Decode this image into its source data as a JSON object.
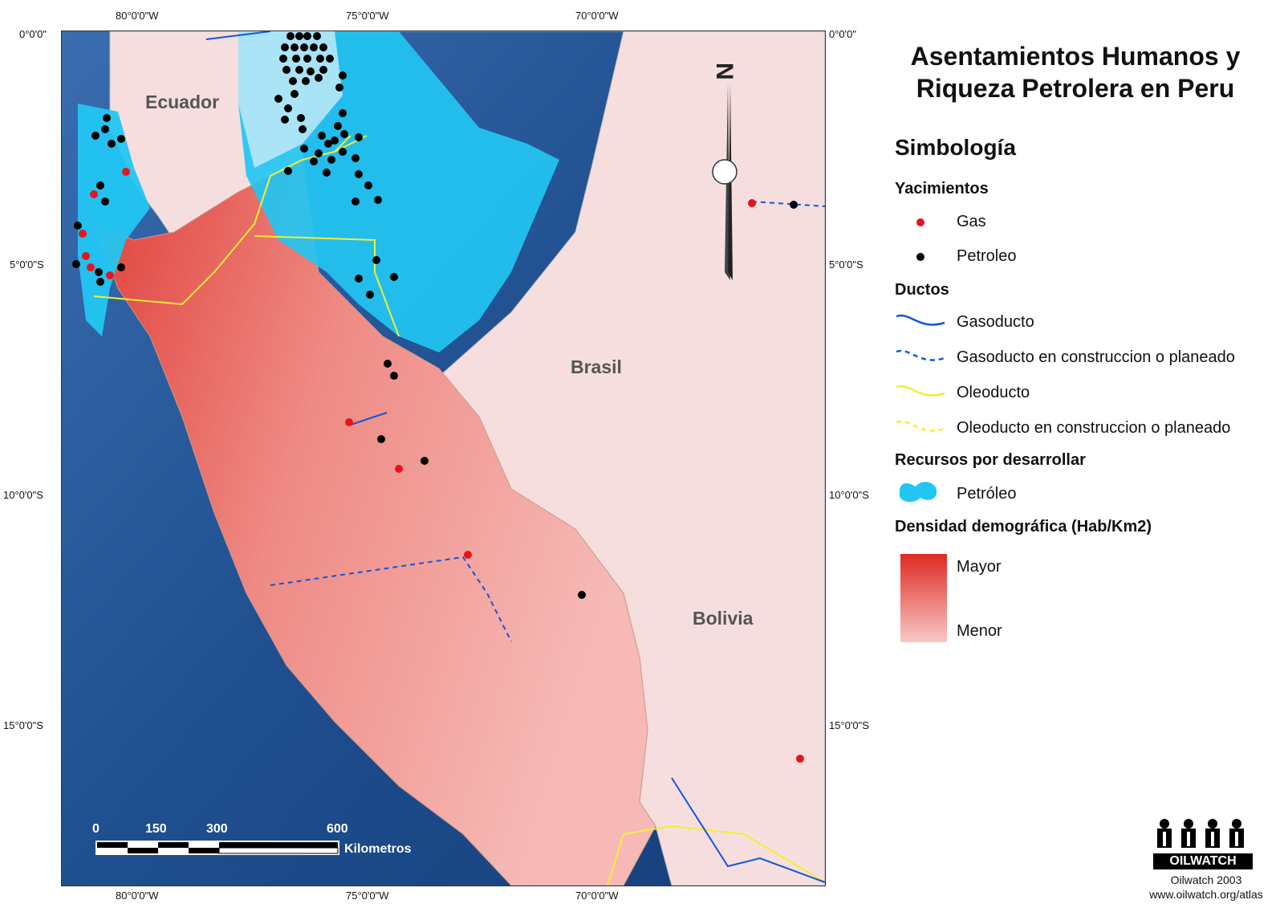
{
  "title": "Asentamientos Humanos y Riqueza Petrolera en Peru",
  "title_lines": [
    "Asentamientos Humanos y",
    "Riqueza Petrolera en Peru"
  ],
  "graticule": {
    "top": [
      "80°0'0\"W",
      "75°0'0\"W",
      "70°0'0\"W"
    ],
    "bottom": [
      "80°0'0\"W",
      "75°0'0\"W",
      "70°0'0\"W"
    ],
    "left": [
      "0°0'0\"",
      "5°0'0\"S",
      "10°0'0\"S",
      "15°0'0\"S"
    ],
    "right": [
      "0°0'0\"",
      "5°0'0\"S",
      "10°0'0\"S",
      "15°0'0\"S"
    ]
  },
  "countries": {
    "ecuador": "Ecuador",
    "brasil": "Brasil",
    "bolivia": "Bolivia"
  },
  "north_arrow_letter": "N",
  "scale_bar": {
    "ticks": [
      "0",
      "150",
      "300",
      "600"
    ],
    "unit": "Kilometros"
  },
  "legend": {
    "heading": "Simbología",
    "yacimientos": {
      "heading": "Yacimientos",
      "gas": "Gas",
      "petroleo": "Petroleo"
    },
    "ductos": {
      "heading": "Ductos",
      "gasoducto": "Gasoducto",
      "gasoducto_planned": "Gasoducto en construccion o planeado",
      "oleoducto": "Oleoducto",
      "oleoducto_planned": "Oleoducto en construccion o planeado"
    },
    "recursos": {
      "heading": "Recursos por desarrollar",
      "petroleo": "Petróleo"
    },
    "densidad": {
      "heading": "Densidad demográfica (Hab/Km2)",
      "mayor": "Mayor",
      "menor": "Menor"
    }
  },
  "credit": {
    "logo_text": "OILWATCH",
    "line1": "Oilwatch 2003",
    "line2": "www.oilwatch.org/atlas"
  },
  "colors": {
    "ocean": "#1f4f8f",
    "peru_high": "#e0302a",
    "peru_low": "#f8c8c6",
    "neighbor": "#f7dede",
    "oil_resource": "#22c6f2",
    "gas_point": "#e8141b",
    "oil_point": "#000000",
    "gas_pipeline": "#1155dd",
    "oil_pipeline": "#f2ee33"
  }
}
